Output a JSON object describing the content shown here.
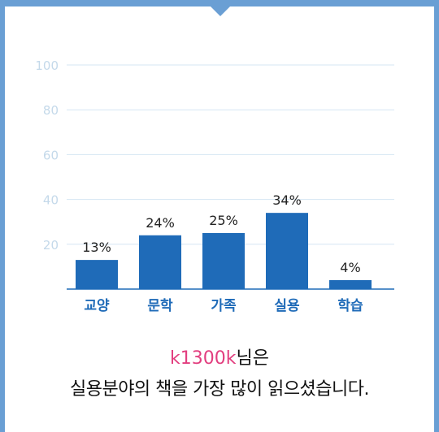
{
  "chart_data": {
    "type": "bar",
    "categories": [
      "교양",
      "문학",
      "가족",
      "실용",
      "학습"
    ],
    "values": [
      13,
      24,
      25,
      34,
      4
    ],
    "value_labels": [
      "13%",
      "24%",
      "25%",
      "34%",
      "4%"
    ],
    "yticks": [
      "100",
      "80",
      "60",
      "40",
      "20"
    ],
    "ylim": [
      0,
      100
    ],
    "grid": true,
    "bar_color": "#1f6bb8",
    "grid_color": "#d5e6f3",
    "tick_color": "#c4d9ea",
    "category_color": "#1f6bb8"
  },
  "caption": {
    "username": "k1300k",
    "suffix": "님은",
    "line2": "실용분야의 책을 가장 많이 읽으셨습니다."
  },
  "colors": {
    "frame": "#6a9fd4",
    "username": "#e23e7f"
  }
}
